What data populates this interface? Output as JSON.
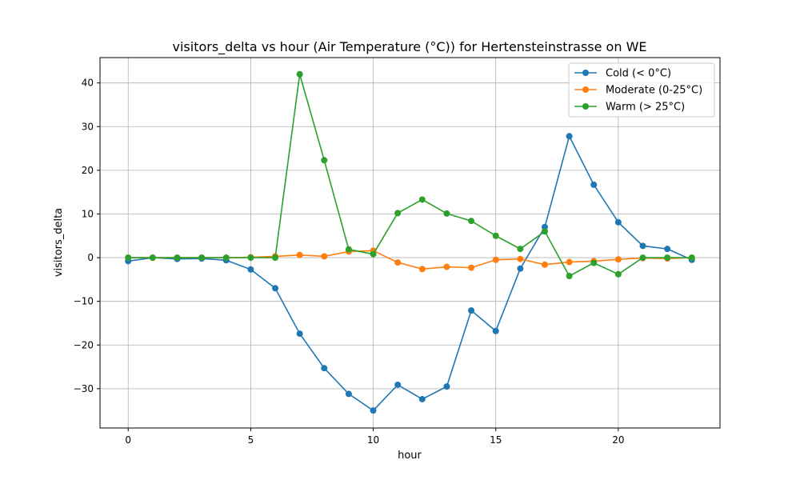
{
  "chart_data": {
    "type": "line",
    "title": "visitors_delta vs hour (Air Temperature (°C)) for Hertensteinstrasse on WE",
    "xlabel": "hour",
    "ylabel": "visitors_delta",
    "xlim": [
      -1.15,
      24.15
    ],
    "ylim": [
      -39.0,
      45.8
    ],
    "xticks": [
      0,
      5,
      10,
      15,
      20
    ],
    "yticks": [
      -30,
      -20,
      -10,
      0,
      10,
      20,
      30,
      40
    ],
    "grid": true,
    "legend_position": "top-right",
    "x": [
      0,
      1,
      2,
      3,
      4,
      5,
      6,
      7,
      8,
      9,
      10,
      11,
      12,
      13,
      14,
      15,
      16,
      17,
      18,
      19,
      20,
      21,
      22,
      23
    ],
    "series": [
      {
        "name": "Cold (< 0°C)",
        "color": "#1f77b4",
        "values": [
          -0.8,
          0.0,
          -0.3,
          -0.2,
          -0.6,
          -2.7,
          -7.0,
          -17.4,
          -25.3,
          -31.2,
          -35.0,
          -29.1,
          -32.4,
          -29.5,
          -12.1,
          -16.8,
          -2.5,
          7.0,
          27.8,
          16.7,
          8.1,
          2.7,
          2.0,
          -0.5
        ]
      },
      {
        "name": "Moderate (0-25°C)",
        "color": "#ff7f0e",
        "values": [
          0.0,
          0.0,
          0.0,
          0.0,
          0.0,
          0.1,
          0.3,
          0.6,
          0.3,
          1.4,
          1.6,
          -1.1,
          -2.6,
          -2.1,
          -2.3,
          -0.5,
          -0.3,
          -1.6,
          -1.0,
          -0.8,
          -0.4,
          -0.1,
          -0.2,
          0.0
        ]
      },
      {
        "name": "Warm (> 25°C)",
        "color": "#2ca02c",
        "values": [
          0.0,
          0.0,
          0.0,
          0.0,
          0.0,
          0.0,
          0.0,
          42.0,
          22.3,
          1.9,
          0.8,
          10.2,
          13.3,
          10.1,
          8.4,
          5.0,
          2.0,
          6.0,
          -4.2,
          -1.2,
          -3.8,
          0.0,
          0.0,
          0.0
        ]
      }
    ]
  }
}
